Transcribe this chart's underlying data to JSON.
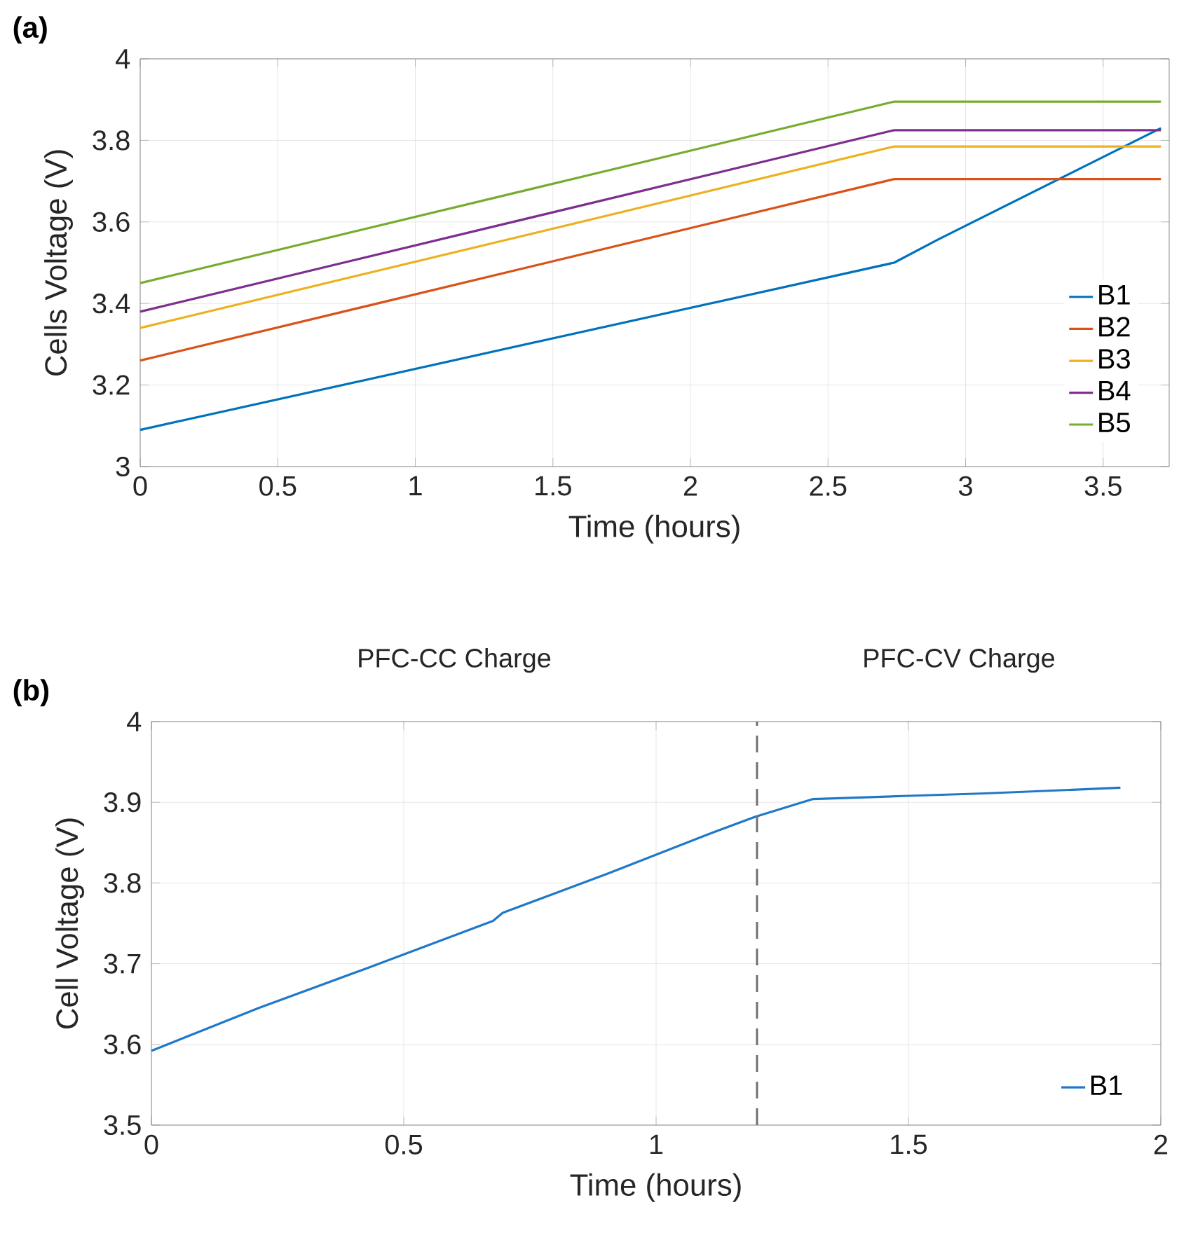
{
  "chart_data": [
    {
      "type": "line",
      "title": "(a)",
      "xlabel": "Time (hours)",
      "ylabel": "Cells Voltage (V)",
      "xlim": [
        0,
        3.74
      ],
      "ylim": [
        3,
        4
      ],
      "xticks": [
        0,
        0.5,
        1,
        1.5,
        2,
        2.5,
        3,
        3.5
      ],
      "yticks": [
        3,
        3.2,
        3.4,
        3.6,
        3.8,
        4
      ],
      "grid": true,
      "legend": "right",
      "marker": "none",
      "series": [
        {
          "name": "B1",
          "color": "#0072bd",
          "x": [
            0,
            2.74,
            2.9,
            3.71
          ],
          "values": [
            3.09,
            3.5,
            3.557,
            3.83
          ]
        },
        {
          "name": "B2",
          "color": "#d95319",
          "x": [
            0,
            2.74,
            3.71
          ],
          "values": [
            3.26,
            3.705,
            3.705
          ]
        },
        {
          "name": "B3",
          "color": "#edb120",
          "x": [
            0,
            2.74,
            3.71
          ],
          "values": [
            3.34,
            3.785,
            3.785
          ]
        },
        {
          "name": "B4",
          "color": "#7e2f8e",
          "x": [
            0,
            2.74,
            3.71
          ],
          "values": [
            3.38,
            3.825,
            3.825
          ]
        },
        {
          "name": "B5",
          "color": "#77ac30",
          "x": [
            0,
            2.74,
            3.71
          ],
          "values": [
            3.45,
            3.895,
            3.895
          ]
        }
      ]
    },
    {
      "type": "line",
      "title": "(b)",
      "xlabel": "Time (hours)",
      "ylabel": "Cell Voltage (V)",
      "xlim": [
        0,
        2
      ],
      "ylim": [
        3.5,
        4
      ],
      "xticks": [
        0,
        0.5,
        1,
        1.5,
        2
      ],
      "yticks": [
        3.5,
        3.6,
        3.7,
        3.8,
        3.9,
        4
      ],
      "grid": true,
      "legend": "bottom right",
      "marker": "none",
      "annotations": [
        "PFC-CC Charge",
        "PFC-CV Charge"
      ],
      "ref_lines": [
        {
          "axis": "x",
          "value": 1.2,
          "color": "#707070",
          "line_style": "dashed"
        }
      ],
      "series": [
        {
          "name": "B1",
          "color": "#1f78c8",
          "x": [
            0,
            0.212,
            0.421,
            0.677,
            0.696,
            0.906,
            1.102,
            1.196,
            1.311,
            1.5,
            1.652,
            1.92
          ],
          "values": [
            3.592,
            3.645,
            3.693,
            3.753,
            3.763,
            3.812,
            3.86,
            3.882,
            3.904,
            3.908,
            3.911,
            3.918
          ]
        }
      ]
    }
  ]
}
